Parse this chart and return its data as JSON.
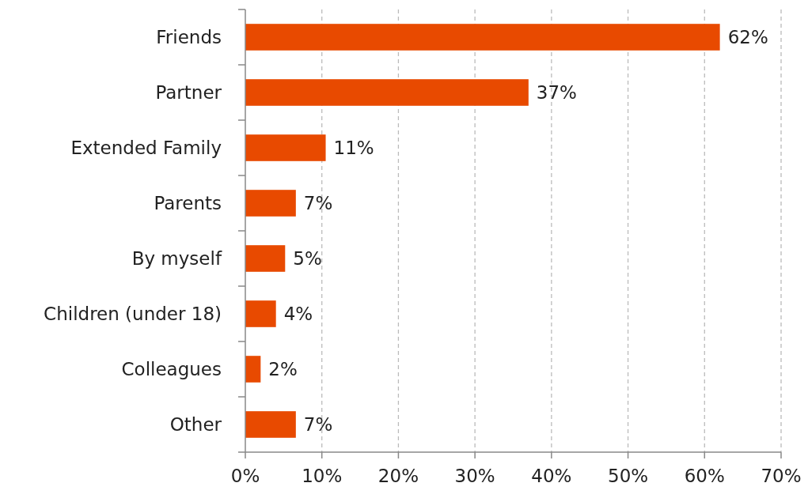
{
  "chart_data": {
    "type": "bar",
    "orientation": "horizontal",
    "categories": [
      "Friends",
      "Partner",
      "Extended Family",
      "Parents",
      "By myself",
      "Children (under 18)",
      "Colleagues",
      "Other"
    ],
    "values": [
      62,
      37,
      10.5,
      6.6,
      5.2,
      4,
      2,
      6.6
    ],
    "value_labels": [
      "62%",
      "37%",
      "11%",
      "7%",
      "5%",
      "4%",
      "2%",
      "7%"
    ],
    "color": "#e84a00",
    "xlim": [
      0,
      70
    ],
    "xticks": [
      {
        "value": 0,
        "label": "0%"
      },
      {
        "value": 10,
        "label": "10%"
      },
      {
        "value": 20,
        "label": "20%"
      },
      {
        "value": 30,
        "label": "30%"
      },
      {
        "value": 40,
        "label": "40%"
      },
      {
        "value": 50,
        "label": "50%"
      },
      {
        "value": 60,
        "label": "60%"
      },
      {
        "value": 70,
        "label": "70%"
      }
    ],
    "grid": "x"
  }
}
